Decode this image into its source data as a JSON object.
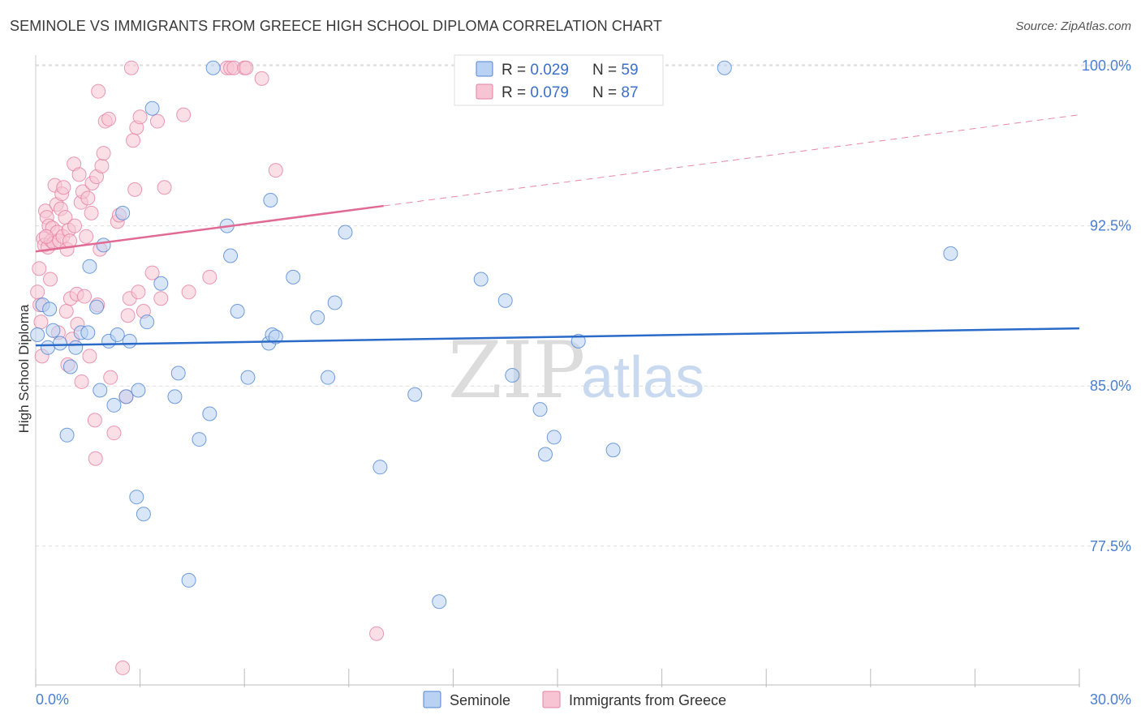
{
  "title": "SEMINOLE VS IMMIGRANTS FROM GREECE HIGH SCHOOL DIPLOMA CORRELATION CHART",
  "source": "Source: ZipAtlas.com",
  "watermark": {
    "zip": "ZIP",
    "atlas": "atlas"
  },
  "colors": {
    "seminole_fill": "#b9d1f3",
    "seminole_stroke": "#4f86d3",
    "seminole_line": "#2a6ac8",
    "greece_fill": "#f7c4d4",
    "greece_stroke": "#e57fa2",
    "greece_line": "#e06a94",
    "grid": "#dcdcdc",
    "axis_text": "#4a7fd0"
  },
  "legend": {
    "rows": [
      {
        "r_label": "R = ",
        "r_value": "0.029",
        "n_label": "N = ",
        "n_value": "59"
      },
      {
        "r_label": "R = ",
        "r_value": "0.079",
        "n_label": "N = ",
        "n_value": "87"
      }
    ]
  },
  "bottom_legend": [
    "Seminole",
    "Immigrants from Greece"
  ],
  "chart_data": {
    "type": "scatter",
    "xlabel": "",
    "ylabel": "High School Diploma",
    "xlim": [
      0,
      30
    ],
    "ylim": [
      71,
      100.8
    ],
    "x_tick_labels": [
      "0.0%",
      "30.0%"
    ],
    "y_ticks": [
      77.5,
      85.0,
      92.5,
      100.0
    ],
    "y_tick_labels": [
      "77.5%",
      "85.0%",
      "92.5%",
      "100.0%"
    ],
    "grid": true,
    "series": [
      {
        "name": "Seminole",
        "r": 0.029,
        "n": 59,
        "trend": {
          "x": [
            0,
            30
          ],
          "y": [
            86.9,
            87.7
          ],
          "dashed_from": null
        },
        "points": [
          [
            0.05,
            87.4
          ],
          [
            0.2,
            88.8
          ],
          [
            0.35,
            86.8
          ],
          [
            0.4,
            88.6
          ],
          [
            0.5,
            87.6
          ],
          [
            0.7,
            87.0
          ],
          [
            0.9,
            82.7
          ],
          [
            1.0,
            85.9
          ],
          [
            1.15,
            86.8
          ],
          [
            1.3,
            87.5
          ],
          [
            1.5,
            87.5
          ],
          [
            1.55,
            90.6
          ],
          [
            1.75,
            88.7
          ],
          [
            1.85,
            84.8
          ],
          [
            1.95,
            91.6
          ],
          [
            2.1,
            87.1
          ],
          [
            2.25,
            84.1
          ],
          [
            2.35,
            87.4
          ],
          [
            2.5,
            93.1
          ],
          [
            2.6,
            84.5
          ],
          [
            2.7,
            87.1
          ],
          [
            2.9,
            79.8
          ],
          [
            2.95,
            84.8
          ],
          [
            3.1,
            79.0
          ],
          [
            3.2,
            88.0
          ],
          [
            3.35,
            98.0
          ],
          [
            3.6,
            89.8
          ],
          [
            4.0,
            84.5
          ],
          [
            4.1,
            85.6
          ],
          [
            4.4,
            75.9
          ],
          [
            4.7,
            82.5
          ],
          [
            5.0,
            83.7
          ],
          [
            5.1,
            99.9
          ],
          [
            5.5,
            92.5
          ],
          [
            5.6,
            91.1
          ],
          [
            5.8,
            88.5
          ],
          [
            6.1,
            85.4
          ],
          [
            6.7,
            87.0
          ],
          [
            6.8,
            87.4
          ],
          [
            6.9,
            87.3
          ],
          [
            6.75,
            93.7
          ],
          [
            7.4,
            90.1
          ],
          [
            8.1,
            88.2
          ],
          [
            8.4,
            85.4
          ],
          [
            8.6,
            88.9
          ],
          [
            8.9,
            92.2
          ],
          [
            9.9,
            81.2
          ],
          [
            10.9,
            84.6
          ],
          [
            11.6,
            74.9
          ],
          [
            12.8,
            90.0
          ],
          [
            13.5,
            89.0
          ],
          [
            13.7,
            85.5
          ],
          [
            14.5,
            83.9
          ],
          [
            14.65,
            81.8
          ],
          [
            14.9,
            82.6
          ],
          [
            15.6,
            87.1
          ],
          [
            16.6,
            82.0
          ],
          [
            19.8,
            99.9
          ],
          [
            26.3,
            91.2
          ]
        ]
      },
      {
        "name": "Immigrants from Greece",
        "r": 0.079,
        "n": 87,
        "trend": {
          "x": [
            0,
            30
          ],
          "y": [
            91.3,
            97.7
          ],
          "dashed_from": 10.0
        },
        "points": [
          [
            0.1,
            90.5
          ],
          [
            0.12,
            88.8
          ],
          [
            0.15,
            88.0
          ],
          [
            0.18,
            86.4
          ],
          [
            0.22,
            91.9
          ],
          [
            0.25,
            91.6
          ],
          [
            0.28,
            93.2
          ],
          [
            0.32,
            92.9
          ],
          [
            0.35,
            91.5
          ],
          [
            0.38,
            92.5
          ],
          [
            0.42,
            90.0
          ],
          [
            0.45,
            91.8
          ],
          [
            0.48,
            92.4
          ],
          [
            0.52,
            91.7
          ],
          [
            0.55,
            94.4
          ],
          [
            0.6,
            93.5
          ],
          [
            0.62,
            92.2
          ],
          [
            0.65,
            87.5
          ],
          [
            0.68,
            91.8
          ],
          [
            0.72,
            93.3
          ],
          [
            0.75,
            94.0
          ],
          [
            0.78,
            92.0
          ],
          [
            0.8,
            94.3
          ],
          [
            0.85,
            92.9
          ],
          [
            0.88,
            88.5
          ],
          [
            0.9,
            91.4
          ],
          [
            0.92,
            86.0
          ],
          [
            0.95,
            92.3
          ],
          [
            0.98,
            91.8
          ],
          [
            1.0,
            89.1
          ],
          [
            1.05,
            87.2
          ],
          [
            1.1,
            95.4
          ],
          [
            1.12,
            92.5
          ],
          [
            1.18,
            89.3
          ],
          [
            1.2,
            87.9
          ],
          [
            1.25,
            94.9
          ],
          [
            1.3,
            93.6
          ],
          [
            1.32,
            85.2
          ],
          [
            1.35,
            94.1
          ],
          [
            1.4,
            89.2
          ],
          [
            1.45,
            92.0
          ],
          [
            1.5,
            93.8
          ],
          [
            1.55,
            86.4
          ],
          [
            1.6,
            93.1
          ],
          [
            1.62,
            94.5
          ],
          [
            1.7,
            83.4
          ],
          [
            1.72,
            81.6
          ],
          [
            1.75,
            94.8
          ],
          [
            1.78,
            88.8
          ],
          [
            1.8,
            98.8
          ],
          [
            1.85,
            91.4
          ],
          [
            1.9,
            95.3
          ],
          [
            1.95,
            95.9
          ],
          [
            2.0,
            97.4
          ],
          [
            2.1,
            97.5
          ],
          [
            2.15,
            85.4
          ],
          [
            2.25,
            82.8
          ],
          [
            2.35,
            92.7
          ],
          [
            2.4,
            93.0
          ],
          [
            2.5,
            71.8
          ],
          [
            2.6,
            84.5
          ],
          [
            2.65,
            88.3
          ],
          [
            2.7,
            89.1
          ],
          [
            2.75,
            99.9
          ],
          [
            2.8,
            96.5
          ],
          [
            2.85,
            94.2
          ],
          [
            2.9,
            97.1
          ],
          [
            2.95,
            89.4
          ],
          [
            3.0,
            97.6
          ],
          [
            3.1,
            88.5
          ],
          [
            3.35,
            90.3
          ],
          [
            3.5,
            97.4
          ],
          [
            3.6,
            89.1
          ],
          [
            3.7,
            94.3
          ],
          [
            4.25,
            97.7
          ],
          [
            4.4,
            89.4
          ],
          [
            5.0,
            90.1
          ],
          [
            5.5,
            99.9
          ],
          [
            5.6,
            99.9
          ],
          [
            5.7,
            99.9
          ],
          [
            6.0,
            99.9
          ],
          [
            6.05,
            99.9
          ],
          [
            6.5,
            99.4
          ],
          [
            6.9,
            95.1
          ],
          [
            9.8,
            73.4
          ],
          [
            0.05,
            89.4
          ],
          [
            0.3,
            92.0
          ]
        ]
      }
    ]
  }
}
